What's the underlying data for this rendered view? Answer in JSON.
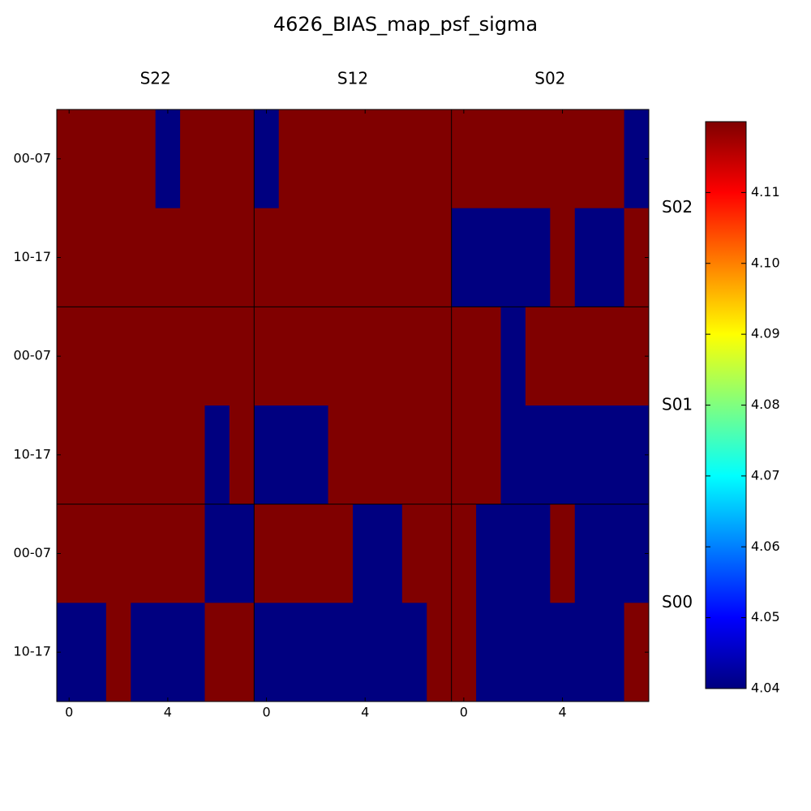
{
  "chart_data": {
    "type": "heatmap",
    "title": "4626_BIAS_map_psf_sigma",
    "colormap": "jet",
    "col_groups": [
      {
        "name": "S22",
        "xticks": [
          0,
          4
        ]
      },
      {
        "name": "S12",
        "xticks": [
          0,
          4
        ]
      },
      {
        "name": "S02",
        "xticks": [
          0,
          4
        ]
      }
    ],
    "row_groups": [
      {
        "name": "S02",
        "rows": [
          "00-07",
          "10-17"
        ]
      },
      {
        "name": "S01",
        "rows": [
          "00-07",
          "10-17"
        ]
      },
      {
        "name": "S00",
        "rows": [
          "00-07",
          "10-17"
        ]
      }
    ],
    "values": [
      [
        4.12,
        4.12,
        4.12,
        4.12,
        4.04,
        4.12,
        4.12,
        4.12,
        4.04,
        4.12,
        4.12,
        4.12,
        4.12,
        4.12,
        4.12,
        4.12,
        4.12,
        4.12,
        4.12,
        4.12,
        4.12,
        4.12,
        4.12,
        4.04
      ],
      [
        4.12,
        4.12,
        4.12,
        4.12,
        4.12,
        4.12,
        4.12,
        4.12,
        4.12,
        4.12,
        4.12,
        4.12,
        4.12,
        4.12,
        4.12,
        4.12,
        4.04,
        4.04,
        4.04,
        4.04,
        4.12,
        4.04,
        4.04,
        4.12
      ],
      [
        4.12,
        4.12,
        4.12,
        4.12,
        4.12,
        4.12,
        4.12,
        4.12,
        4.12,
        4.12,
        4.12,
        4.12,
        4.12,
        4.12,
        4.12,
        4.12,
        4.12,
        4.12,
        4.04,
        4.12,
        4.12,
        4.12,
        4.12,
        4.12
      ],
      [
        4.12,
        4.12,
        4.12,
        4.12,
        4.12,
        4.12,
        4.04,
        4.12,
        4.04,
        4.04,
        4.04,
        4.12,
        4.12,
        4.12,
        4.12,
        4.12,
        4.12,
        4.12,
        4.04,
        4.04,
        4.04,
        4.04,
        4.04,
        4.04
      ],
      [
        4.12,
        4.12,
        4.12,
        4.12,
        4.12,
        4.12,
        4.04,
        4.04,
        4.12,
        4.12,
        4.12,
        4.12,
        4.04,
        4.04,
        4.12,
        4.12,
        4.12,
        4.04,
        4.04,
        4.04,
        4.12,
        4.04,
        4.04,
        4.04
      ],
      [
        4.04,
        4.04,
        4.12,
        4.04,
        4.04,
        4.04,
        4.12,
        4.12,
        4.04,
        4.04,
        4.04,
        4.04,
        4.04,
        4.04,
        4.04,
        4.12,
        4.12,
        4.04,
        4.04,
        4.04,
        4.04,
        4.04,
        4.04,
        4.12
      ]
    ],
    "clim": [
      4.04,
      4.12
    ],
    "cticks": [
      4.04,
      4.05,
      4.06,
      4.07,
      4.08,
      4.09,
      {
        "value": 4.1,
        "label": "4.10"
      },
      4.11
    ]
  }
}
